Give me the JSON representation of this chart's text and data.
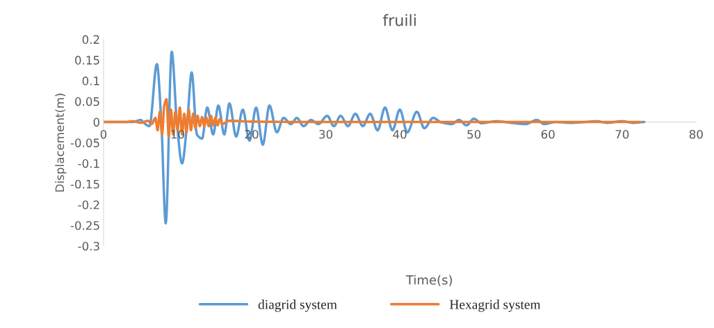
{
  "chart_data": {
    "type": "line",
    "title": "fruili",
    "xlabel": "Time(s)",
    "ylabel": "Displacement(m)",
    "xlim": [
      0,
      80
    ],
    "xticks": [
      0,
      10,
      20,
      30,
      40,
      50,
      60,
      70,
      80
    ],
    "ylim": [
      -0.3,
      0.2
    ],
    "yticks": [
      -0.3,
      -0.25,
      -0.2,
      -0.15,
      -0.1,
      -0.05,
      0,
      0.05,
      0.1,
      0.15,
      0.2
    ],
    "grid": false,
    "legend": "bottom",
    "marker": "none",
    "line_style": "solid",
    "series": [
      {
        "name": "diagrid system",
        "color": "#5b9bd5",
        "x": [
          0,
          4,
          5,
          5.5,
          6.2,
          7.2,
          7.8,
          8.4,
          9.2,
          9.9,
          10.6,
          11.3,
          11.9,
          12.6,
          13.3,
          14.0,
          14.8,
          15.5,
          16.3,
          17.0,
          17.9,
          18.8,
          19.7,
          20.6,
          21.5,
          22.4,
          23.4,
          24.3,
          25.3,
          26.1,
          27.0,
          28,
          29,
          30.2,
          31.1,
          32,
          33,
          34,
          35,
          36,
          37,
          38,
          39,
          40,
          41,
          42.3,
          43.3,
          44.5,
          45.5,
          47,
          48,
          49,
          50,
          51,
          53,
          55,
          57,
          58.5,
          59.5,
          61,
          63,
          65,
          66.5,
          68,
          70,
          71.5,
          73
        ],
        "values": [
          0,
          0,
          0.005,
          -0.003,
          -0.01,
          0.14,
          0,
          -0.245,
          0.17,
          0,
          -0.1,
          0,
          0.12,
          -0.03,
          -0.04,
          0.035,
          -0.03,
          0.04,
          -0.03,
          0.045,
          -0.035,
          0.03,
          -0.045,
          0.035,
          -0.055,
          0.04,
          -0.025,
          0.01,
          -0.005,
          0.01,
          -0.01,
          0.005,
          -0.005,
          0.015,
          -0.01,
          0.015,
          -0.01,
          0.02,
          -0.01,
          0.02,
          -0.02,
          0.035,
          -0.02,
          0.03,
          -0.025,
          0.025,
          -0.015,
          0.01,
          0,
          -0.005,
          0.005,
          -0.008,
          0.008,
          -0.003,
          0.002,
          -0.002,
          -0.005,
          0.005,
          -0.005,
          0,
          -0.002,
          0,
          0.002,
          -0.002,
          0.002,
          -0.002,
          0
        ]
      },
      {
        "name": "Hexagrid system",
        "color": "#ed7d31",
        "x": [
          0,
          3,
          4,
          5,
          6,
          6.5,
          7,
          7.3,
          7.6,
          7.9,
          8.2,
          8.5,
          8.8,
          9.1,
          9.4,
          9.7,
          10.0,
          10.3,
          10.6,
          10.9,
          11.2,
          11.5,
          11.8,
          12.1,
          12.4,
          12.7,
          13.0,
          13.3,
          13.6,
          13.9,
          14.2,
          14.5,
          14.8,
          15.1,
          15.4,
          15.7,
          16.0,
          17,
          20,
          30,
          40,
          50,
          60,
          70,
          72.5
        ],
        "values": [
          0,
          0,
          0.002,
          -0.002,
          0.003,
          -0.005,
          0.01,
          -0.02,
          0.025,
          -0.03,
          0.04,
          0.055,
          -0.035,
          0.03,
          -0.03,
          0.025,
          -0.02,
          0.035,
          -0.03,
          0.02,
          -0.025,
          0.03,
          -0.02,
          0.02,
          -0.015,
          0.015,
          -0.01,
          0.012,
          -0.01,
          0.01,
          -0.01,
          0.015,
          -0.008,
          0.01,
          -0.008,
          0.008,
          -0.005,
          0.003,
          0.001,
          0,
          0,
          0,
          0,
          0,
          0
        ]
      }
    ]
  }
}
